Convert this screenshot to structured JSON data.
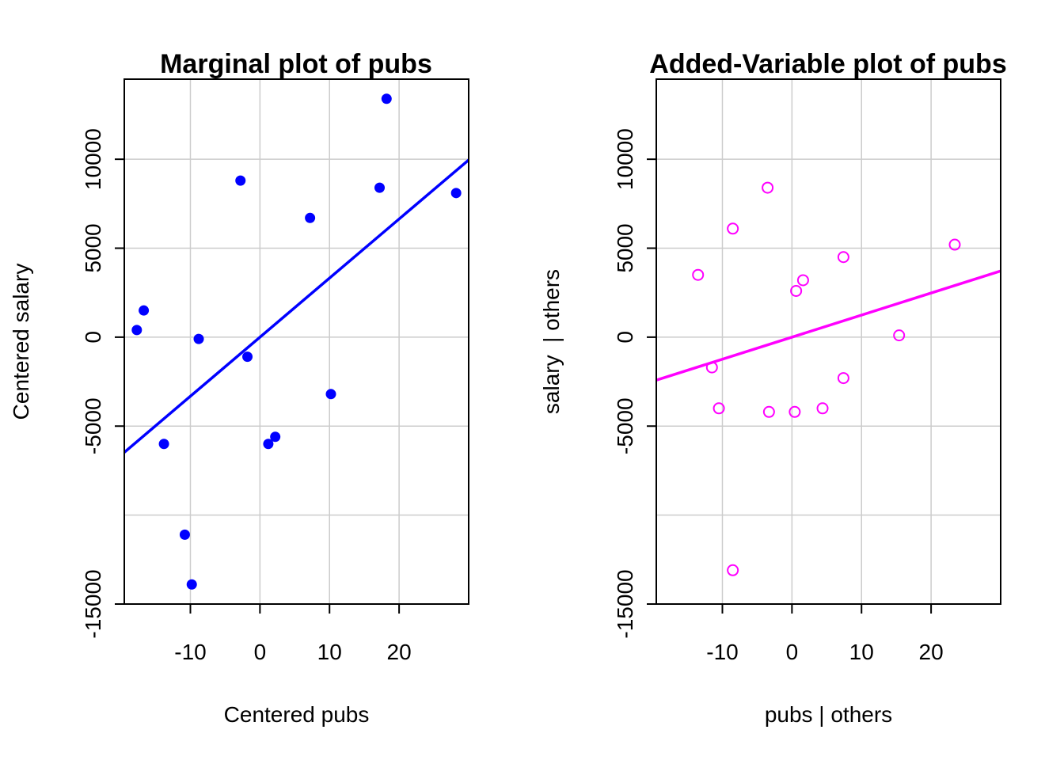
{
  "chart_data": [
    {
      "type": "scatter",
      "title": "Marginal plot of pubs",
      "xlabel": "Centered pubs",
      "ylabel": "Centered salary",
      "xlim": [
        -19.5,
        30
      ],
      "ylim": [
        -15000,
        14500
      ],
      "x_ticks": [
        -10,
        0,
        10,
        20
      ],
      "x_tick_labels": [
        "-10",
        "0",
        "10",
        "20"
      ],
      "y_ticks": [
        -15000,
        -5000,
        0,
        5000,
        10000
      ],
      "y_tick_labels": [
        "-15000",
        "-5000",
        "0",
        "5000",
        "10000"
      ],
      "x_grid": [
        -10,
        0,
        10,
        20
      ],
      "y_grid": [
        -15000,
        -10000,
        -5000,
        0,
        5000,
        10000
      ],
      "grid": true,
      "marker": "filled-circle",
      "color": "#0000FF",
      "points": [
        {
          "x": -17.7,
          "y": 400
        },
        {
          "x": -16.7,
          "y": 1500
        },
        {
          "x": -13.8,
          "y": -6000
        },
        {
          "x": -10.8,
          "y": -11100
        },
        {
          "x": -9.8,
          "y": -13900
        },
        {
          "x": -8.8,
          "y": -100
        },
        {
          "x": -2.8,
          "y": 8800
        },
        {
          "x": -1.8,
          "y": -1100
        },
        {
          "x": 1.2,
          "y": -6000
        },
        {
          "x": 2.2,
          "y": -5600
        },
        {
          "x": 7.2,
          "y": 6700
        },
        {
          "x": 10.2,
          "y": -3200
        },
        {
          "x": 17.2,
          "y": 8400
        },
        {
          "x": 18.2,
          "y": 13400
        },
        {
          "x": 28.2,
          "y": 8100
        }
      ],
      "fit_line": {
        "intercept": 0,
        "slope": 332,
        "color": "#0000FF"
      }
    },
    {
      "type": "scatter",
      "title": "Added-Variable plot of pubs",
      "xlabel": "pubs | others",
      "ylabel": "salary  | others",
      "xlim": [
        -19.5,
        30
      ],
      "ylim": [
        -15000,
        14500
      ],
      "x_ticks": [
        -10,
        0,
        10,
        20
      ],
      "x_tick_labels": [
        "-10",
        "0",
        "10",
        "20"
      ],
      "y_ticks": [
        -15000,
        -5000,
        0,
        5000,
        10000
      ],
      "y_tick_labels": [
        "-15000",
        "-5000",
        "0",
        "5000",
        "10000"
      ],
      "x_grid": [
        -10,
        0,
        10,
        20
      ],
      "y_grid": [
        -15000,
        -10000,
        -5000,
        0,
        5000,
        10000
      ],
      "grid": true,
      "marker": "open-circle",
      "color": "#FF00FF",
      "points": [
        {
          "x": -13.5,
          "y": 3500
        },
        {
          "x": -11.5,
          "y": -1700
        },
        {
          "x": -10.5,
          "y": -4000
        },
        {
          "x": -8.5,
          "y": 6100
        },
        {
          "x": -8.5,
          "y": -13100
        },
        {
          "x": -3.5,
          "y": 8400
        },
        {
          "x": -3.3,
          "y": -4200
        },
        {
          "x": 0.4,
          "y": -4200
        },
        {
          "x": 0.6,
          "y": 2600
        },
        {
          "x": 1.6,
          "y": 3200
        },
        {
          "x": 4.4,
          "y": -4000
        },
        {
          "x": 7.4,
          "y": 4500
        },
        {
          "x": 7.4,
          "y": -2300
        },
        {
          "x": 15.4,
          "y": 100
        },
        {
          "x": 23.4,
          "y": 5200
        }
      ],
      "fit_line": {
        "intercept": 0,
        "slope": 124,
        "color": "#FF00FF"
      }
    }
  ]
}
